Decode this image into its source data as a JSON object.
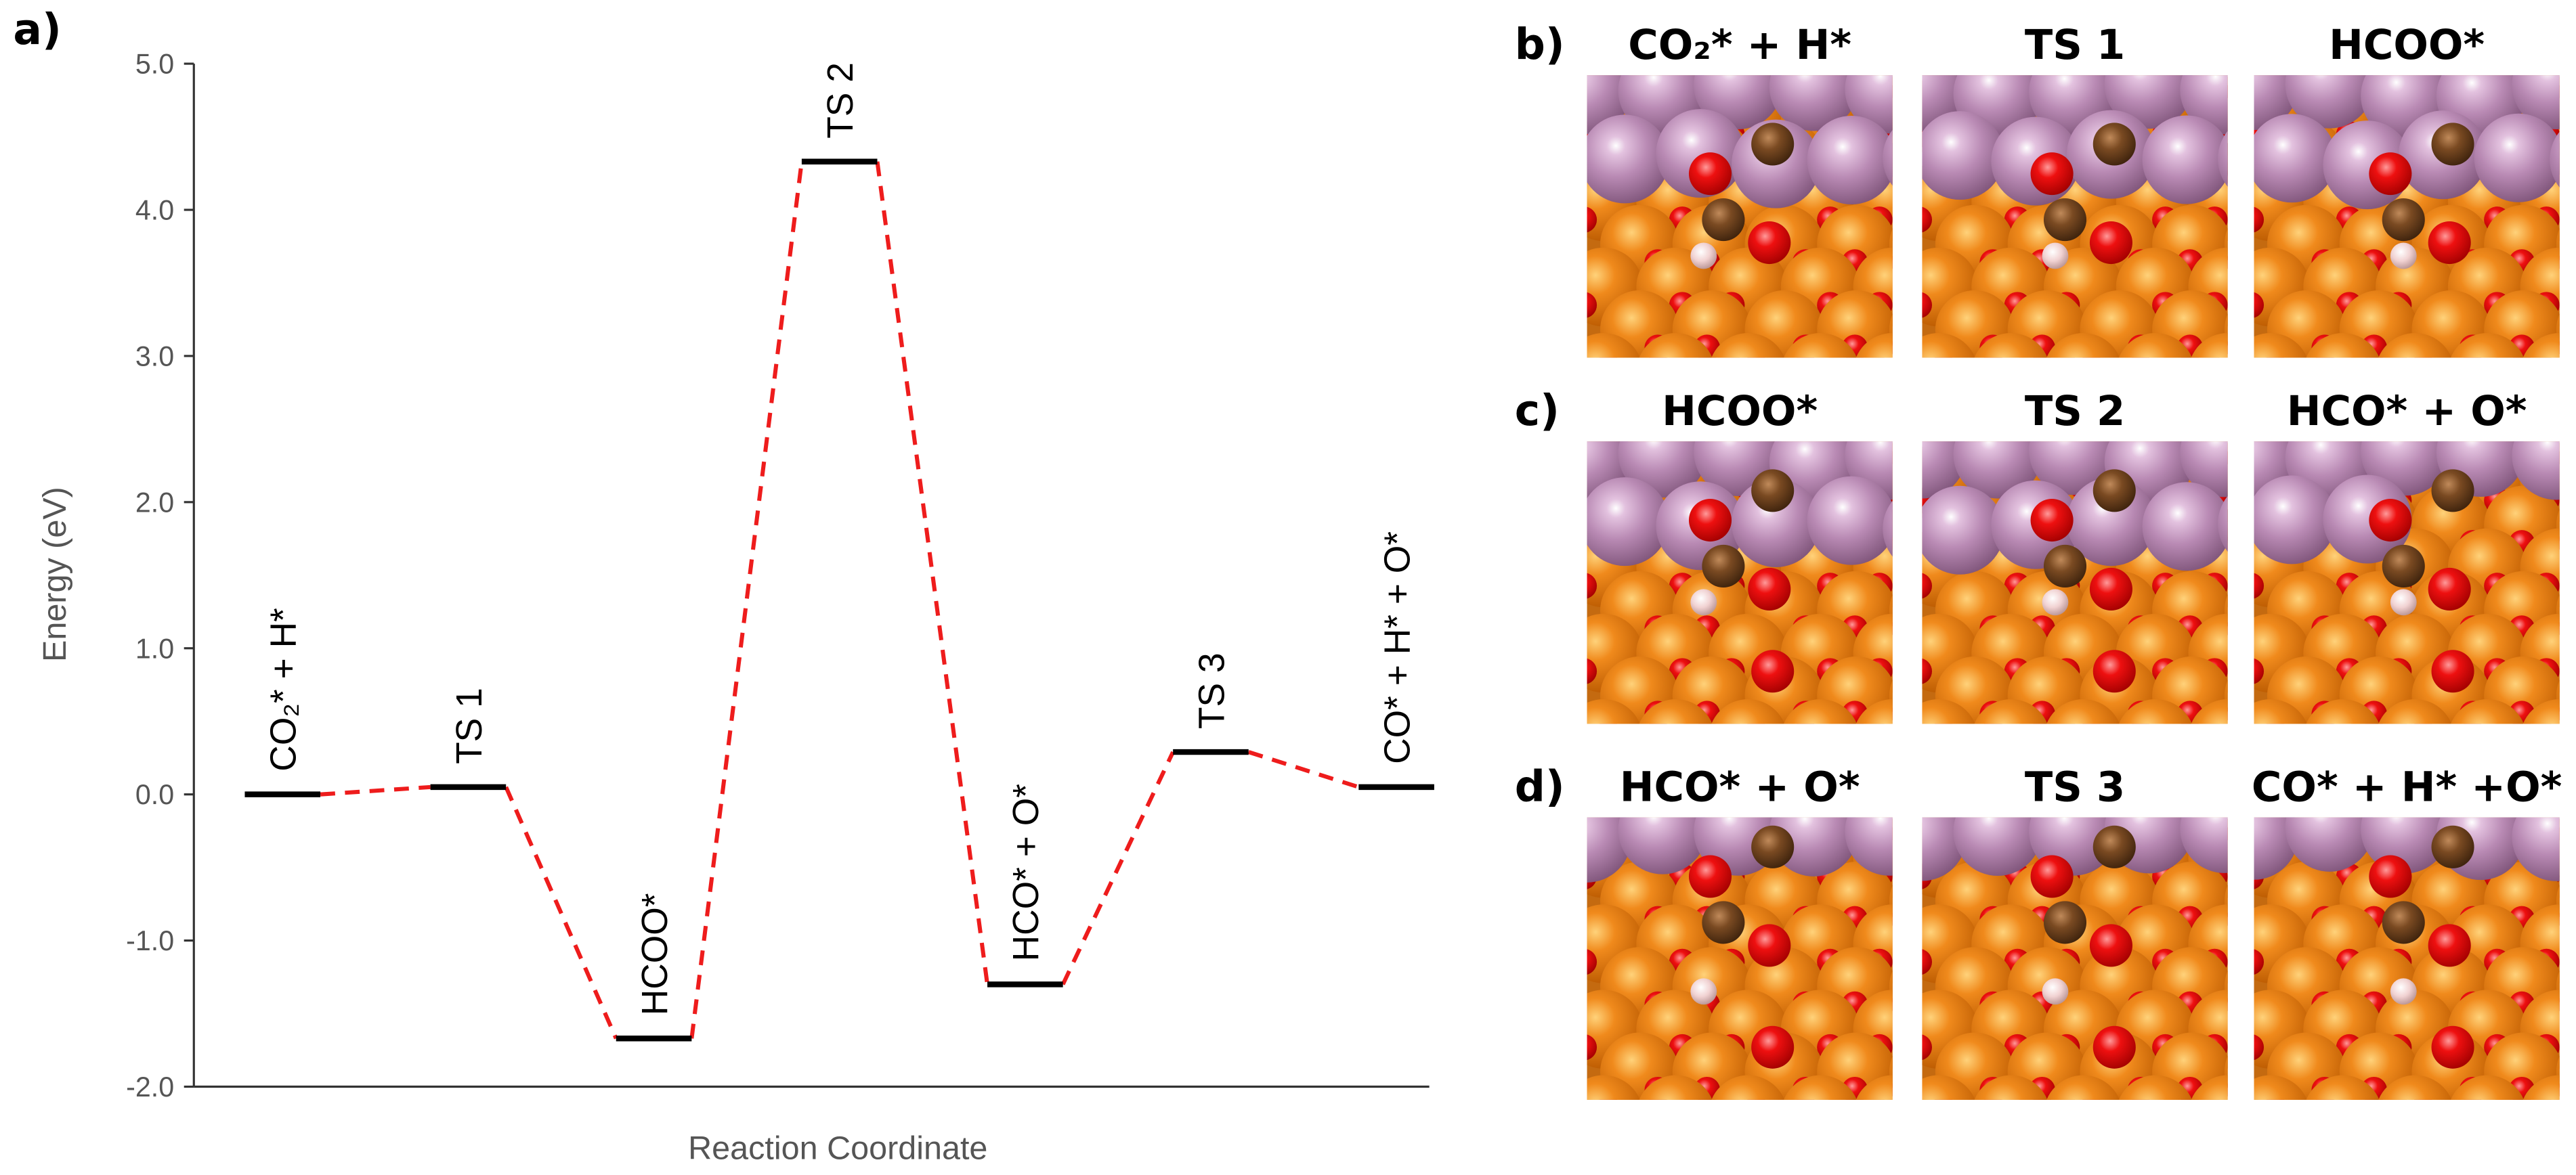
{
  "panel_label": "a)",
  "chart_data": {
    "type": "energy-profile",
    "y_label": "Energy (eV)",
    "x_label": "Reaction Coordinate",
    "categories": [
      "CO₂* + H*",
      "TS 1",
      "HCOO*",
      "TS 2",
      "HCO* + O*",
      "TS 3",
      "CO* + H* + O*"
    ],
    "values": [
      0.0,
      0.05,
      -1.67,
      4.33,
      -1.3,
      0.29,
      0.05
    ],
    "level_color": "#000000",
    "connector_color": "#ee1c1c",
    "ylim": [
      -2,
      5
    ],
    "yticks": [
      {
        "value": -2,
        "label": "-2.0"
      },
      {
        "value": -1,
        "label": "-1.0"
      },
      {
        "value": 0,
        "label": "0.0"
      },
      {
        "value": 1,
        "label": "1.0"
      },
      {
        "value": 2,
        "label": "2.0"
      },
      {
        "value": 3,
        "label": "3.0"
      },
      {
        "value": 4,
        "label": "4.0"
      },
      {
        "value": 5,
        "label": "5.0"
      }
    ]
  },
  "structure_panels": [
    {
      "label": "b)",
      "titles": [
        "CO₂* + H*",
        "TS 1",
        "HCOO*"
      ]
    },
    {
      "label": "c)",
      "titles": [
        "HCOO*",
        "TS 2",
        "HCO* + O*"
      ]
    },
    {
      "label": "d)",
      "titles": [
        "HCO* + O*",
        "TS 3",
        "CO* + H* +O*"
      ]
    }
  ]
}
